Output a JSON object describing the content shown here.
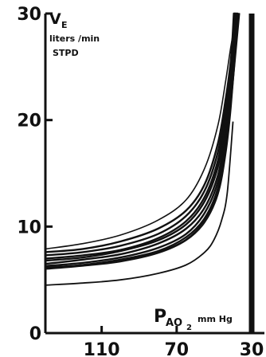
{
  "chart_data": {
    "type": "line",
    "title": "",
    "ylabel": {
      "main": "V",
      "sub": "E",
      "unit_line1": "liters /min",
      "unit_line2": "STPD"
    },
    "xlabel": {
      "main": "P",
      "sub": "AO",
      "subsub": "2",
      "unit": "mm Hg"
    },
    "x_reversed": true,
    "xlim": [
      140,
      30
    ],
    "ylim": [
      0,
      30
    ],
    "x_ticks": [
      110,
      70,
      30
    ],
    "y_ticks": [
      0,
      10,
      20,
      30
    ],
    "grid": false,
    "series": [
      {
        "x": [
          140,
          120,
          100,
          80,
          65,
          55,
          48,
          44,
          41,
          38
        ],
        "values": [
          7.9,
          8.4,
          9.2,
          10.6,
          12.5,
          15.5,
          19.5,
          23.5,
          27,
          30
        ],
        "stroke": 1.6
      },
      {
        "x": [
          140,
          120,
          100,
          80,
          65,
          55,
          48,
          44,
          41,
          39.5
        ],
        "values": [
          7.6,
          7.9,
          8.6,
          9.8,
          11.5,
          14,
          17.8,
          21.8,
          25.8,
          30
        ],
        "stroke": 2.4
      },
      {
        "x": [
          140,
          120,
          100,
          80,
          65,
          55,
          48,
          44,
          41,
          39
        ],
        "values": [
          7.3,
          7.6,
          8.2,
          9.3,
          11.0,
          13.4,
          17.0,
          21.0,
          25.0,
          30
        ],
        "stroke": 2.4
      },
      {
        "x": [
          140,
          120,
          100,
          80,
          65,
          55,
          48,
          44,
          41,
          38.5
        ],
        "values": [
          7.0,
          7.3,
          7.8,
          8.9,
          10.5,
          12.8,
          16.2,
          20.2,
          24.6,
          30
        ],
        "stroke": 2.4
      },
      {
        "x": [
          140,
          120,
          100,
          80,
          65,
          55,
          48,
          44,
          41,
          39
        ],
        "values": [
          6.8,
          7.1,
          7.7,
          8.7,
          10.2,
          12.4,
          15.6,
          19.4,
          23.6,
          30
        ],
        "stroke": 2.4
      },
      {
        "x": [
          140,
          120,
          100,
          80,
          65,
          55,
          48,
          44,
          41,
          38.5
        ],
        "values": [
          6.5,
          6.9,
          7.4,
          8.4,
          9.8,
          11.8,
          14.8,
          18.6,
          23.0,
          30
        ],
        "stroke": 2.4
      },
      {
        "x": [
          140,
          120,
          100,
          80,
          65,
          55,
          48,
          44,
          41,
          38
        ],
        "values": [
          6.3,
          6.6,
          7.1,
          8.0,
          9.3,
          11.3,
          14.2,
          18.0,
          22.5,
          30
        ],
        "stroke": 2.4
      },
      {
        "x": [
          140,
          120,
          100,
          80,
          65,
          55,
          48,
          44,
          41,
          37.5
        ],
        "values": [
          6.1,
          6.4,
          6.9,
          7.7,
          9.0,
          10.8,
          13.6,
          17.4,
          22.0,
          30
        ],
        "stroke": 2.4
      },
      {
        "x": [
          140,
          120,
          100,
          80,
          65,
          55,
          48,
          44,
          41,
          37
        ],
        "values": [
          6.0,
          6.3,
          6.7,
          7.5,
          8.7,
          10.4,
          13.0,
          16.6,
          21.2,
          30
        ],
        "stroke": 1.6
      },
      {
        "x": [
          140,
          120,
          100,
          80,
          65,
          55,
          48,
          44,
          41,
          36.5
        ],
        "values": [
          6.2,
          6.4,
          6.8,
          7.6,
          8.8,
          10.6,
          13.3,
          17.0,
          21.6,
          30
        ],
        "stroke": 1.6
      },
      {
        "x": [
          140,
          120,
          100,
          80,
          65,
          55,
          50,
          46,
          43,
          40
        ],
        "values": [
          4.5,
          4.7,
          5.0,
          5.6,
          6.4,
          7.6,
          8.8,
          10.6,
          13.2,
          19.8
        ],
        "stroke": 1.8
      }
    ]
  }
}
